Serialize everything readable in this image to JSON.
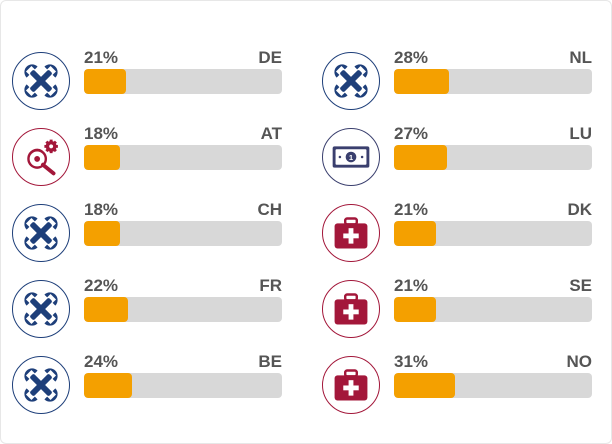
{
  "chart_data": {
    "type": "bar",
    "title": "",
    "unit": "%",
    "xlim": [
      0,
      100
    ],
    "colors": {
      "bar_fill": "#f4a000",
      "bar_track": "#d8d8d8",
      "label": "#555555",
      "tools_icon": "#1e3f7a",
      "money_icon": "#3a3f6e",
      "medical_icon": "#a3173a"
    },
    "columns": [
      [
        {
          "code": "DE",
          "value": 21,
          "label": "21%",
          "icon": "wrench-icon"
        },
        {
          "code": "AT",
          "value": 18,
          "label": "18%",
          "icon": "gear-wrench-icon"
        },
        {
          "code": "CH",
          "value": 18,
          "label": "18%",
          "icon": "wrench-icon"
        },
        {
          "code": "FR",
          "value": 22,
          "label": "22%",
          "icon": "wrench-icon"
        },
        {
          "code": "BE",
          "value": 24,
          "label": "24%",
          "icon": "wrench-icon"
        }
      ],
      [
        {
          "code": "NL",
          "value": 28,
          "label": "28%",
          "icon": "wrench-icon"
        },
        {
          "code": "LU",
          "value": 27,
          "label": "27%",
          "icon": "banknote-icon"
        },
        {
          "code": "DK",
          "value": 21,
          "label": "21%",
          "icon": "medical-kit-icon"
        },
        {
          "code": "SE",
          "value": 21,
          "label": "21%",
          "icon": "medical-kit-icon"
        },
        {
          "code": "NO",
          "value": 31,
          "label": "31%",
          "icon": "medical-kit-icon"
        }
      ]
    ]
  }
}
